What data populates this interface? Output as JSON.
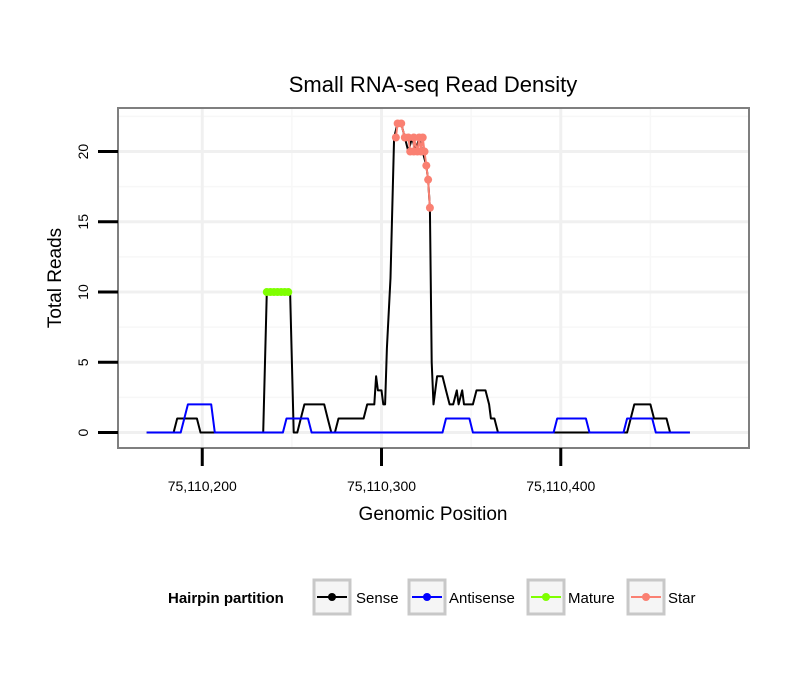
{
  "chart_data": {
    "type": "line",
    "title": "Small RNA-seq Read Density",
    "xlabel": "Genomic Position",
    "ylabel": "Total Reads",
    "xlim": [
      75110153,
      75110505
    ],
    "ylim": [
      -1.1,
      23.1
    ],
    "x_ticks": [
      {
        "value": 75110200,
        "label": "75,110,200"
      },
      {
        "value": 75110300,
        "label": "75,110,300"
      },
      {
        "value": 75110400,
        "label": "75,110,400"
      }
    ],
    "y_ticks": [
      {
        "value": 0,
        "label": "0"
      },
      {
        "value": 5,
        "label": "5"
      },
      {
        "value": 10,
        "label": "10"
      },
      {
        "value": 15,
        "label": "15"
      },
      {
        "value": 20,
        "label": "20"
      }
    ],
    "grid": true,
    "series": [
      {
        "name": "Sense",
        "color": "#000000",
        "points": [
          [
            75110169,
            0
          ],
          [
            75110184,
            0
          ],
          [
            75110186,
            1
          ],
          [
            75110197,
            1
          ],
          [
            75110199,
            0
          ],
          [
            75110234,
            0
          ],
          [
            75110236,
            10
          ],
          [
            75110249,
            10
          ],
          [
            75110251,
            0
          ],
          [
            75110253,
            0
          ],
          [
            75110255,
            1
          ],
          [
            75110257,
            2
          ],
          [
            75110268,
            2
          ],
          [
            75110270,
            1
          ],
          [
            75110272,
            0
          ],
          [
            75110274,
            0
          ],
          [
            75110276,
            1
          ],
          [
            75110290,
            1
          ],
          [
            75110292,
            2
          ],
          [
            75110296,
            2
          ],
          [
            75110297,
            4
          ],
          [
            75110298,
            3
          ],
          [
            75110300,
            3
          ],
          [
            75110301,
            2
          ],
          [
            75110302,
            2
          ],
          [
            75110303,
            6
          ],
          [
            75110305,
            11
          ],
          [
            75110307,
            21
          ],
          [
            75110309,
            22
          ],
          [
            75110311,
            22
          ],
          [
            75110313,
            21
          ],
          [
            75110315,
            20
          ],
          [
            75110317,
            21
          ],
          [
            75110319,
            20
          ],
          [
            75110321,
            21
          ],
          [
            75110323,
            20
          ],
          [
            75110325,
            19
          ],
          [
            75110326,
            18
          ],
          [
            75110327,
            16
          ],
          [
            75110328,
            5
          ],
          [
            75110329,
            2
          ],
          [
            75110331,
            4
          ],
          [
            75110334,
            4
          ],
          [
            75110336,
            3
          ],
          [
            75110338,
            2
          ],
          [
            75110340,
            2
          ],
          [
            75110342,
            3
          ],
          [
            75110343,
            2
          ],
          [
            75110345,
            3
          ],
          [
            75110346,
            2
          ],
          [
            75110351,
            2
          ],
          [
            75110353,
            3
          ],
          [
            75110358,
            3
          ],
          [
            75110360,
            2
          ],
          [
            75110361,
            1
          ],
          [
            75110363,
            1
          ],
          [
            75110365,
            0
          ],
          [
            75110437,
            0
          ],
          [
            75110439,
            1
          ],
          [
            75110441,
            2
          ],
          [
            75110450,
            2
          ],
          [
            75110452,
            1
          ],
          [
            75110459,
            1
          ],
          [
            75110461,
            0
          ],
          [
            75110472,
            0
          ]
        ]
      },
      {
        "name": "Antisense",
        "color": "#0000ff",
        "points": [
          [
            75110169,
            0
          ],
          [
            75110188,
            0
          ],
          [
            75110190,
            1
          ],
          [
            75110192,
            2
          ],
          [
            75110205,
            2
          ],
          [
            75110207,
            0
          ],
          [
            75110245,
            0
          ],
          [
            75110247,
            1
          ],
          [
            75110259,
            1
          ],
          [
            75110261,
            0
          ],
          [
            75110334,
            0
          ],
          [
            75110336,
            1
          ],
          [
            75110349,
            1
          ],
          [
            75110351,
            0
          ],
          [
            75110396,
            0
          ],
          [
            75110398,
            1
          ],
          [
            75110414,
            1
          ],
          [
            75110416,
            0
          ],
          [
            75110435,
            0
          ],
          [
            75110437,
            1
          ],
          [
            75110451,
            1
          ],
          [
            75110453,
            0
          ],
          [
            75110472,
            0
          ]
        ]
      },
      {
        "name": "Mature",
        "color": "#7fff00",
        "points": [
          [
            75110236,
            10
          ],
          [
            75110238,
            10
          ],
          [
            75110240,
            10
          ],
          [
            75110242,
            10
          ],
          [
            75110244,
            10
          ],
          [
            75110246,
            10
          ],
          [
            75110248,
            10
          ]
        ]
      },
      {
        "name": "Star",
        "color": "#fa8072",
        "points": [
          [
            75110308,
            21
          ],
          [
            75110309,
            22
          ],
          [
            75110311,
            22
          ],
          [
            75110313,
            21
          ],
          [
            75110315,
            21
          ],
          [
            75110316,
            20
          ],
          [
            75110318,
            20
          ],
          [
            75110318,
            21
          ],
          [
            75110320,
            20
          ],
          [
            75110321,
            21
          ],
          [
            75110322,
            20
          ],
          [
            75110323,
            21
          ],
          [
            75110324,
            20
          ],
          [
            75110325,
            19
          ],
          [
            75110326,
            18
          ],
          [
            75110327,
            16
          ]
        ]
      }
    ],
    "legend": {
      "title": "Hairpin partition",
      "placement": "bottom",
      "entries": [
        "Sense",
        "Antisense",
        "Mature",
        "Star"
      ]
    }
  }
}
